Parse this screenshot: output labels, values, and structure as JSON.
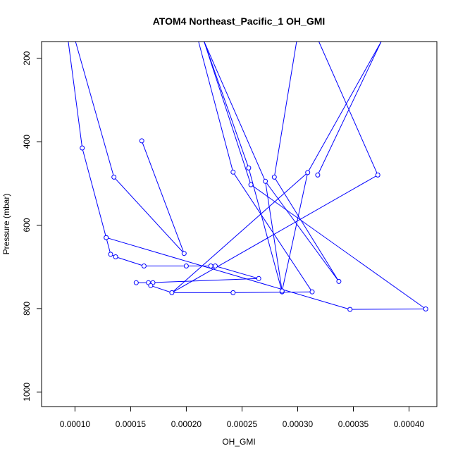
{
  "chart_data": {
    "type": "scatter",
    "title": "ATOM4 Northeast_Pacific_1 OH_GMI",
    "xlabel": "OH_GMI",
    "ylabel": "Pressure (mbar)",
    "xlim": [
      7e-05,
      0.000425
    ],
    "ylim": [
      1035,
      160
    ],
    "y_reversed": true,
    "x_ticks": [
      0.0001,
      0.00015,
      0.0002,
      0.00025,
      0.0003,
      0.00035,
      0.0004
    ],
    "x_tick_labels": [
      "0.00010",
      "0.00015",
      "0.00020",
      "0.00025",
      "0.00030",
      "0.00035",
      "0.00040"
    ],
    "y_ticks": [
      200,
      400,
      600,
      800,
      1000
    ],
    "y_tick_labels": [
      "200",
      "400",
      "600",
      "800",
      "1000"
    ],
    "grid": false,
    "series_color": "#0000ff",
    "points": [
      {
        "x": 9.4e-05,
        "y": 160
      },
      {
        "x": 0.0001065,
        "y": 415
      },
      {
        "x": 0.000128,
        "y": 630
      },
      {
        "x": 0.000132,
        "y": 670
      },
      {
        "x": 0.0001365,
        "y": 676
      },
      {
        "x": 0.0001005,
        "y": 160
      },
      {
        "x": 0.000135,
        "y": 485
      },
      {
        "x": 0.000198,
        "y": 668
      },
      {
        "x": 0.00016,
        "y": 398
      },
      {
        "x": 0.0002,
        "y": 698
      },
      {
        "x": 0.000162,
        "y": 698
      },
      {
        "x": 0.000222,
        "y": 698
      },
      {
        "x": 0.000226,
        "y": 698
      },
      {
        "x": 0.000265,
        "y": 728
      },
      {
        "x": 0.000155,
        "y": 738
      },
      {
        "x": 0.000166,
        "y": 738
      },
      {
        "x": 0.00017,
        "y": 738
      },
      {
        "x": 0.000168,
        "y": 745
      },
      {
        "x": 0.000187,
        "y": 762
      },
      {
        "x": 0.000372,
        "y": 480
      },
      {
        "x": 0.000242,
        "y": 762
      },
      {
        "x": 0.000286,
        "y": 760
      },
      {
        "x": 0.000313,
        "y": 760
      },
      {
        "x": 0.000242,
        "y": 473
      },
      {
        "x": 0.000216,
        "y": 160
      },
      {
        "x": 0.000256,
        "y": 463
      },
      {
        "x": 0.000337,
        "y": 735
      },
      {
        "x": 0.000258,
        "y": 503
      },
      {
        "x": 0.000211,
        "y": 160
      },
      {
        "x": 0.000271,
        "y": 495
      },
      {
        "x": 0.000286,
        "y": 758
      },
      {
        "x": 0.000309,
        "y": 474
      },
      {
        "x": 0.000375,
        "y": 160
      },
      {
        "x": 0.000279,
        "y": 485
      },
      {
        "x": 0.000318,
        "y": 480
      },
      {
        "x": 0.000372,
        "y": 160
      },
      {
        "x": 0.000347,
        "y": 802
      },
      {
        "x": 0.000415,
        "y": 801
      },
      {
        "x": 0.000128,
        "y": 630
      }
    ],
    "segments": [
      [
        9.4e-05,
        160,
        0.0001065,
        415
      ],
      [
        0.0001065,
        415,
        0.000128,
        630
      ],
      [
        0.000128,
        630,
        0.000132,
        670
      ],
      [
        0.000132,
        670,
        0.0001365,
        676
      ],
      [
        0.0001005,
        160,
        0.000135,
        485
      ],
      [
        0.000135,
        485,
        0.000198,
        668
      ],
      [
        0.00016,
        398,
        0.000198,
        668
      ],
      [
        0.0001365,
        676,
        0.000162,
        698
      ],
      [
        0.000162,
        698,
        0.000222,
        698
      ],
      [
        0.000226,
        698,
        0.000265,
        728
      ],
      [
        0.000265,
        728,
        0.000166,
        738
      ],
      [
        0.000155,
        738,
        0.000166,
        738
      ],
      [
        0.00017,
        738,
        0.000168,
        745
      ],
      [
        0.000168,
        745,
        0.000187,
        762
      ],
      [
        0.000187,
        762,
        0.000372,
        480
      ],
      [
        0.000187,
        762,
        0.000309,
        474
      ],
      [
        0.000187,
        762,
        0.000242,
        762
      ],
      [
        0.000242,
        762,
        0.000313,
        760
      ],
      [
        0.000128,
        630,
        0.000347,
        802
      ],
      [
        0.000347,
        802,
        0.000415,
        801
      ],
      [
        0.0002,
        698,
        0.000222,
        698
      ],
      [
        0.000211,
        160,
        0.000242,
        473
      ],
      [
        0.000242,
        473,
        0.000313,
        760
      ],
      [
        0.000216,
        160,
        0.000256,
        463
      ],
      [
        0.000256,
        463,
        0.000286,
        760
      ],
      [
        0.000216,
        160,
        0.000258,
        503
      ],
      [
        0.000258,
        503,
        0.000415,
        801
      ],
      [
        0.000216,
        160,
        0.000271,
        495
      ],
      [
        0.000271,
        495,
        0.000286,
        758
      ],
      [
        0.000286,
        758,
        0.000309,
        474
      ],
      [
        0.000309,
        474,
        0.000375,
        160
      ],
      [
        0.000299,
        160,
        0.000279,
        485
      ],
      [
        0.000279,
        485,
        0.000337,
        735
      ],
      [
        0.000271,
        495,
        0.000337,
        735
      ],
      [
        0.000318,
        480,
        0.000375,
        160
      ],
      [
        0.000372,
        480,
        0.000319,
        160
      ]
    ]
  }
}
